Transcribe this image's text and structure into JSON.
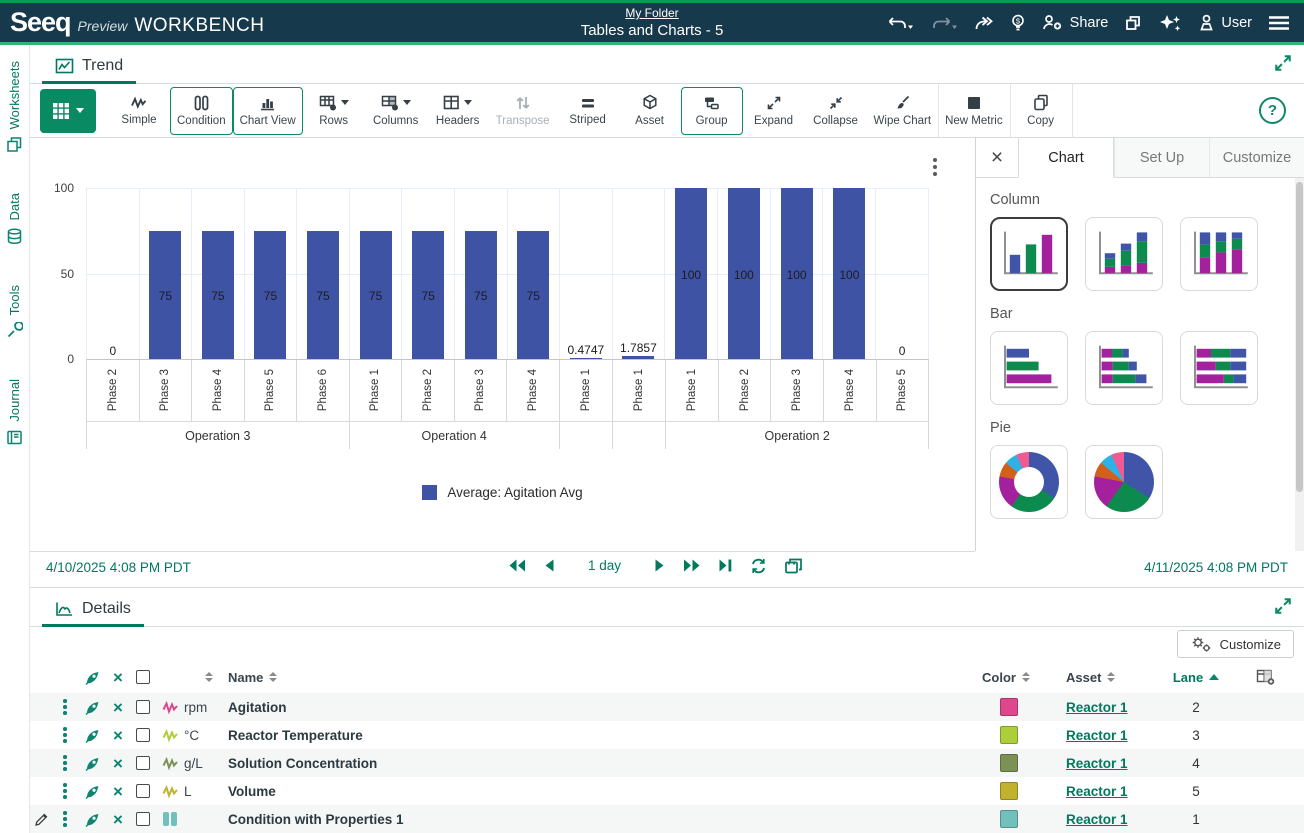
{
  "icons": {
    "close": "×",
    "help": "?"
  },
  "header": {
    "logo": {
      "seeq": "Seeq",
      "preview": "Preview",
      "workbench": "WORKBENCH"
    },
    "folder_link": "My Folder",
    "document_title": "Tables and Charts - 5",
    "share_label": "Share",
    "user_label": "User"
  },
  "sidebar": {
    "items": [
      {
        "label": "Worksheets"
      },
      {
        "label": "Data"
      },
      {
        "label": "Tools"
      },
      {
        "label": "Journal"
      }
    ]
  },
  "trend": {
    "tab_label": "Trend"
  },
  "toolbar": {
    "buttons": [
      {
        "name": "table-type",
        "label": "",
        "selected": true
      },
      {
        "name": "simple",
        "label": "Simple",
        "selected": false
      },
      {
        "name": "condition",
        "label": "Condition",
        "selected": true
      },
      {
        "name": "chart-view",
        "label": "Chart View",
        "selected": true
      },
      {
        "name": "rows",
        "label": "Rows",
        "selected": false
      },
      {
        "name": "columns",
        "label": "Columns",
        "selected": false
      },
      {
        "name": "headers",
        "label": "Headers",
        "selected": false
      },
      {
        "name": "transpose",
        "label": "Transpose",
        "disabled": true
      },
      {
        "name": "striped",
        "label": "Striped",
        "selected": false
      },
      {
        "name": "asset",
        "label": "Asset",
        "selected": false
      },
      {
        "name": "group",
        "label": "Group",
        "selected": true
      },
      {
        "name": "expand",
        "label": "Expand",
        "selected": false
      },
      {
        "name": "collapse",
        "label": "Collapse",
        "selected": false
      },
      {
        "name": "wipe-chart",
        "label": "Wipe Chart",
        "selected": false
      },
      {
        "name": "new-metric",
        "label": "New Metric",
        "selected": false
      },
      {
        "name": "copy",
        "label": "Copy",
        "selected": false
      }
    ]
  },
  "chart_data": {
    "type": "bar",
    "bar_color": "#3f53a4",
    "ylim": [
      0,
      100
    ],
    "yticks": [
      0,
      50,
      100
    ],
    "legend": {
      "label": "Average: Agitation Avg",
      "color": "#3f53a4",
      "position": "bottom"
    },
    "grid": true,
    "groups": [
      {
        "label": "Operation 3",
        "bars": [
          {
            "category": "Phase 2",
            "value": 0,
            "label": "0"
          },
          {
            "category": "Phase 3",
            "value": 75,
            "label": "75"
          },
          {
            "category": "Phase 4",
            "value": 75,
            "label": "75"
          },
          {
            "category": "Phase 5",
            "value": 75,
            "label": "75"
          },
          {
            "category": "Phase 6",
            "value": 75,
            "label": "75"
          }
        ]
      },
      {
        "label": "Operation 4",
        "bars": [
          {
            "category": "Phase 1",
            "value": 75,
            "label": "75"
          },
          {
            "category": "Phase 2",
            "value": 75,
            "label": "75"
          },
          {
            "category": "Phase 3",
            "value": 75,
            "label": "75"
          },
          {
            "category": "Phase 4",
            "value": 75,
            "label": "75"
          }
        ]
      },
      {
        "label": "",
        "bars": [
          {
            "category": "Phase 1",
            "value": 0.4747,
            "label": "0.4747"
          }
        ]
      },
      {
        "label": "",
        "bars": [
          {
            "category": "Phase 1",
            "value": 1.7857,
            "label": "1.7857"
          }
        ]
      },
      {
        "label": "Operation 2",
        "bars": [
          {
            "category": "Phase 1",
            "value": 100,
            "label": "100"
          },
          {
            "category": "Phase 2",
            "value": 100,
            "label": "100"
          },
          {
            "category": "Phase 3",
            "value": 100,
            "label": "100"
          },
          {
            "category": "Phase 4",
            "value": 100,
            "label": "100"
          },
          {
            "category": "Phase 5",
            "value": 0,
            "label": "0"
          }
        ]
      }
    ]
  },
  "right_panel": {
    "tabs": [
      {
        "label": "Chart",
        "active": true
      },
      {
        "label": "Set Up",
        "active": false
      },
      {
        "label": "Customize",
        "active": false
      }
    ],
    "sections": [
      {
        "label": "Column",
        "thumbnails": [
          {
            "name": "column-simple",
            "selected": true
          },
          {
            "name": "column-stacked",
            "selected": false
          },
          {
            "name": "column-100",
            "selected": false
          }
        ]
      },
      {
        "label": "Bar",
        "thumbnails": [
          {
            "name": "bar-simple",
            "selected": false
          },
          {
            "name": "bar-stacked",
            "selected": false
          },
          {
            "name": "bar-100",
            "selected": false
          }
        ]
      },
      {
        "label": "Pie",
        "thumbnails": [
          {
            "name": "pie-donut",
            "selected": false
          },
          {
            "name": "pie-solid",
            "selected": false
          }
        ]
      }
    ]
  },
  "timebar": {
    "start": "4/10/2025 4:08 PM  PDT",
    "end": "4/11/2025 4:08 PM  PDT",
    "duration": "1 day"
  },
  "details": {
    "tab_label": "Details",
    "customize_label": "Customize",
    "columns": {
      "name": "Name",
      "color": "Color",
      "asset": "Asset",
      "lane": "Lane"
    },
    "rows": [
      {
        "unit": "rpm",
        "name": "Agitation",
        "type": "signal",
        "color": "#e0468c",
        "asset": "Reactor 1",
        "lane": "2",
        "editable": false
      },
      {
        "unit": "°C",
        "name": "Reactor Temperature",
        "type": "signal",
        "color": "#abce3a",
        "asset": "Reactor 1",
        "lane": "3",
        "editable": false
      },
      {
        "unit": "g/L",
        "name": "Solution Concentration",
        "type": "signal",
        "color": "#7d9157",
        "asset": "Reactor 1",
        "lane": "4",
        "editable": false
      },
      {
        "unit": "L",
        "name": "Volume",
        "type": "signal",
        "color": "#c0b22f",
        "asset": "Reactor 1",
        "lane": "5",
        "editable": false
      },
      {
        "unit": "",
        "name": "Condition with Properties 1",
        "type": "condition",
        "color": "#72c0bb",
        "asset": "Reactor 1",
        "lane": "1",
        "editable": true
      }
    ]
  },
  "colors": {
    "accent_teal": "#00795f",
    "icon_teal": "#0b8471",
    "bar_blue": "#3f53a4",
    "header_navy": "#17394c",
    "brand_green": "#2eb873"
  }
}
